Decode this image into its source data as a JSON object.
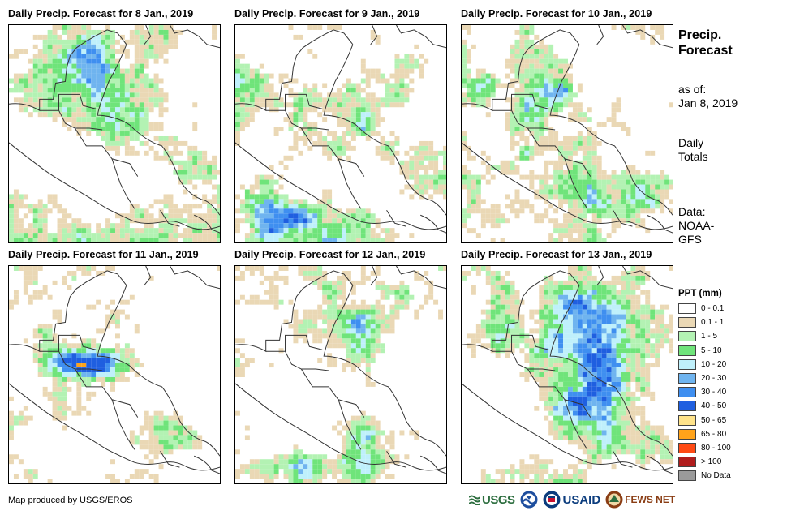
{
  "panels": [
    {
      "title": "Daily  Precip.  Forecast for 8 Jan., 2019",
      "pattern": 0
    },
    {
      "title": "Daily  Precip.  Forecast for 9 Jan., 2019",
      "pattern": 1
    },
    {
      "title": "Daily  Precip.  Forecast for 10 Jan., 2019",
      "pattern": 2
    },
    {
      "title": "Daily  Precip.  Forecast for 11 Jan., 2019",
      "pattern": 3
    },
    {
      "title": "Daily  Precip.  Forecast for 12 Jan., 2019",
      "pattern": 4
    },
    {
      "title": "Daily  Precip.  Forecast for 13 Jan., 2019",
      "pattern": 5
    }
  ],
  "side": {
    "title_line1": "Precip.",
    "title_line2": "Forecast",
    "asof_line1": "as of:",
    "asof_line2": "Jan 8, 2019",
    "daily_line1": "Daily",
    "daily_line2": "Totals",
    "data_line1": "Data:",
    "data_line2": "NOAA-",
    "data_line3": "GFS"
  },
  "legend": {
    "title": "PPT (mm)",
    "items": [
      {
        "label": "0 - 0.1",
        "color": "#ffffff"
      },
      {
        "label": "0.1 - 1",
        "color": "#ead8b5"
      },
      {
        "label": "1 - 5",
        "color": "#b3f2b3"
      },
      {
        "label": "5 - 10",
        "color": "#6fe47a"
      },
      {
        "label": "10 - 20",
        "color": "#bff0fb"
      },
      {
        "label": "20 - 30",
        "color": "#6fb4ef"
      },
      {
        "label": "30 - 40",
        "color": "#3f8ff0"
      },
      {
        "label": "40 - 50",
        "color": "#1f5fe0"
      },
      {
        "label": "50 - 65",
        "color": "#ffe38a"
      },
      {
        "label": "65 - 80",
        "color": "#ffa31a"
      },
      {
        "label": "80 - 100",
        "color": "#ff4a14"
      },
      {
        "label": "> 100",
        "color": "#b01d1d"
      },
      {
        "label": "No Data",
        "color": "#9b9b9b"
      }
    ]
  },
  "credit": "Map produced by USGS/EROS",
  "logos": {
    "usgs": "USGS",
    "usaid": "USAID",
    "fews": "FEWS NET"
  }
}
